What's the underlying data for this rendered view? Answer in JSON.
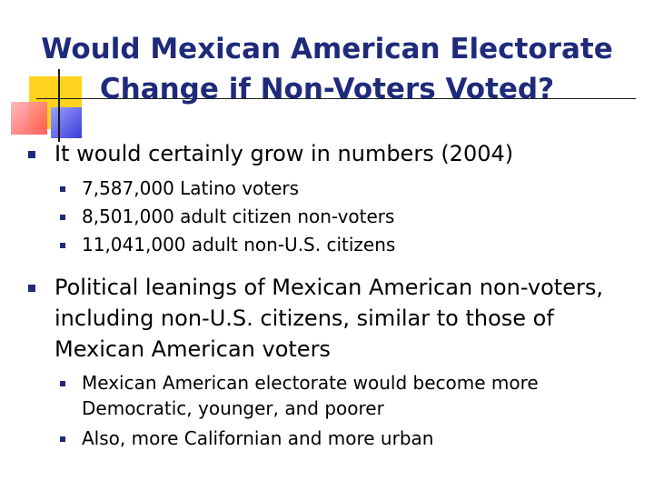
{
  "slide": {
    "title_line1": "Would Mexican American  Electorate",
    "title_line2": "Change if Non-Voters Voted?",
    "accent_color": "#1f2a7a",
    "bullets": [
      {
        "text": "It would certainly grow in numbers (2004)",
        "sub": [
          "7,587,000 Latino voters",
          "8,501,000 adult citizen non-voters",
          "11,041,000 adult non-U.S. citizens"
        ]
      },
      {
        "text": "Political leanings of Mexican American non-voters, including non-U.S. citizens, similar to those of Mexican American voters",
        "sub": [
          "Mexican American electorate would become more Democratic, younger, and poorer",
          "Also, more Californian and more urban"
        ]
      }
    ]
  }
}
